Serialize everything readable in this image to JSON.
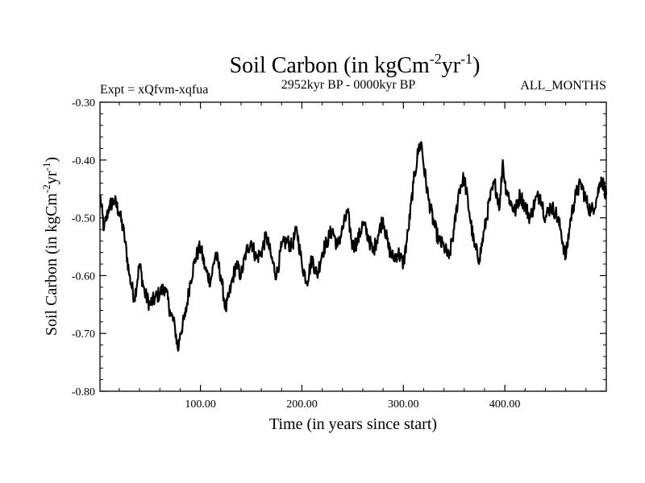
{
  "chart_data": {
    "type": "line",
    "title_main": "Soil Carbon (in kgCm",
    "title_sup1": "-2",
    "title_mid": "yr",
    "title_sup2": "-1",
    "title_end": ")",
    "subtitle_left": "Expt = xQfvm-xqfua",
    "subtitle_center": "2952kyr BP - 0000kyr BP",
    "subtitle_right": "ALL_MONTHS",
    "xlabel": "Time (in years since start)",
    "ylabel_main": "Soil Carbon (in kgCm",
    "ylabel_sup1": "-2",
    "ylabel_mid": "yr",
    "ylabel_sup2": "-1",
    "ylabel_end": ")",
    "xlim": [
      1,
      500
    ],
    "ylim": [
      -0.8,
      -0.3
    ],
    "x_ticks": [
      100,
      200,
      300,
      400
    ],
    "x_tick_labels": [
      "100.00",
      "200.00",
      "300.00",
      "400.00"
    ],
    "y_ticks": [
      -0.3,
      -0.4,
      -0.5,
      -0.6,
      -0.7,
      -0.8
    ],
    "y_tick_labels": [
      "-0.30",
      "-0.40",
      "-0.50",
      "-0.60",
      "-0.70",
      "-0.80"
    ],
    "series": [
      {
        "name": "Soil Carbon",
        "color": "#000000",
        "x": [
          1,
          5,
          10,
          15,
          20,
          25,
          30,
          35,
          40,
          45,
          50,
          55,
          60,
          65,
          70,
          75,
          78,
          80,
          85,
          90,
          95,
          100,
          105,
          110,
          115,
          120,
          125,
          130,
          135,
          140,
          145,
          150,
          155,
          160,
          165,
          170,
          175,
          180,
          185,
          190,
          195,
          200,
          205,
          210,
          215,
          220,
          225,
          230,
          235,
          240,
          245,
          250,
          255,
          260,
          265,
          270,
          275,
          280,
          285,
          290,
          295,
          300,
          305,
          310,
          315,
          318,
          320,
          325,
          330,
          335,
          340,
          345,
          350,
          355,
          360,
          365,
          370,
          375,
          380,
          385,
          390,
          395,
          398,
          400,
          405,
          410,
          415,
          420,
          425,
          430,
          435,
          440,
          445,
          450,
          455,
          460,
          465,
          470,
          475,
          480,
          485,
          490,
          495,
          500
        ],
        "y": [
          -0.46,
          -0.52,
          -0.48,
          -0.47,
          -0.49,
          -0.53,
          -0.6,
          -0.64,
          -0.58,
          -0.63,
          -0.65,
          -0.64,
          -0.63,
          -0.62,
          -0.66,
          -0.69,
          -0.73,
          -0.7,
          -0.67,
          -0.61,
          -0.57,
          -0.55,
          -0.59,
          -0.61,
          -0.56,
          -0.6,
          -0.66,
          -0.62,
          -0.58,
          -0.6,
          -0.56,
          -0.54,
          -0.57,
          -0.56,
          -0.53,
          -0.57,
          -0.6,
          -0.55,
          -0.54,
          -0.55,
          -0.52,
          -0.58,
          -0.61,
          -0.57,
          -0.6,
          -0.56,
          -0.54,
          -0.52,
          -0.55,
          -0.52,
          -0.49,
          -0.55,
          -0.54,
          -0.51,
          -0.53,
          -0.56,
          -0.53,
          -0.5,
          -0.55,
          -0.57,
          -0.56,
          -0.58,
          -0.52,
          -0.44,
          -0.38,
          -0.37,
          -0.41,
          -0.47,
          -0.51,
          -0.54,
          -0.55,
          -0.57,
          -0.52,
          -0.45,
          -0.43,
          -0.49,
          -0.55,
          -0.57,
          -0.52,
          -0.47,
          -0.44,
          -0.48,
          -0.4,
          -0.44,
          -0.47,
          -0.49,
          -0.46,
          -0.48,
          -0.5,
          -0.47,
          -0.46,
          -0.5,
          -0.48,
          -0.49,
          -0.52,
          -0.57,
          -0.5,
          -0.46,
          -0.44,
          -0.47,
          -0.49,
          -0.47,
          -0.43,
          -0.46
        ]
      }
    ]
  }
}
